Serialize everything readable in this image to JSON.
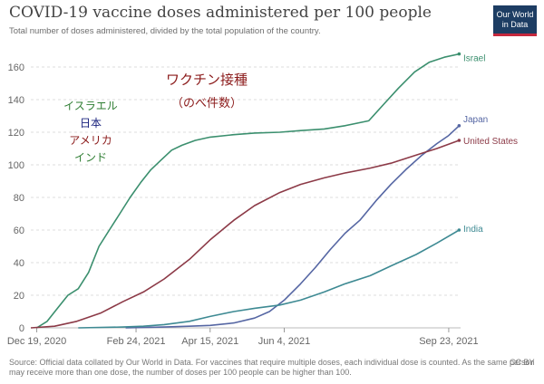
{
  "header": {
    "title": "COVID-19 vaccine doses administered per 100 people",
    "subtitle": "Total number of doses administered, divided by the total population of the country.",
    "logo_line1": "Our World",
    "logo_line2": "in Data"
  },
  "footer": {
    "source": "Source: Official data collated by Our World in Data. For vaccines that require multiple doses, each individual dose is counted. As the same person may receive more than one dose, the number of doses per 100 people can be higher than 100.",
    "license": "CC BY"
  },
  "annotations": {
    "title": "ワクチン接種",
    "subtitle": "（のべ件数）",
    "legend": [
      {
        "label": "イスラエル",
        "color": "#2e7d32"
      },
      {
        "label": "日本",
        "color": "#1a237e"
      },
      {
        "label": "アメリカ",
        "color": "#8b1a1a"
      },
      {
        "label": "インド",
        "color": "#2e7d32"
      }
    ],
    "title_color": "#8b1a1a"
  },
  "chart_data": {
    "type": "line",
    "title": "COVID-19 vaccine doses administered per 100 people",
    "ylim": [
      0,
      170
    ],
    "yticks": [
      0,
      20,
      40,
      60,
      80,
      100,
      120,
      140,
      160
    ],
    "xlim": [
      "2020-12-15",
      "2021-10-01"
    ],
    "xticks": [
      "2020-12-19",
      "2021-02-24",
      "2021-04-15",
      "2021-06-04",
      "2021-09-23"
    ],
    "xtick_labels": [
      "Dec 19, 2020",
      "Feb 24, 2021",
      "Apr 15, 2021",
      "Jun 4, 2021",
      "Sep 23, 2021"
    ],
    "grid": true,
    "series": [
      {
        "name": "Israel",
        "color": "#3b8f6e",
        "points": [
          [
            "2020-12-19",
            0
          ],
          [
            "2020-12-26",
            4
          ],
          [
            "2021-01-02",
            12
          ],
          [
            "2021-01-09",
            20
          ],
          [
            "2021-01-16",
            24
          ],
          [
            "2021-01-23",
            34
          ],
          [
            "2021-01-30",
            50
          ],
          [
            "2021-02-06",
            60
          ],
          [
            "2021-02-13",
            70
          ],
          [
            "2021-02-20",
            80
          ],
          [
            "2021-02-27",
            89
          ],
          [
            "2021-03-06",
            97
          ],
          [
            "2021-03-13",
            103
          ],
          [
            "2021-03-20",
            109
          ],
          [
            "2021-03-27",
            112
          ],
          [
            "2021-04-05",
            115
          ],
          [
            "2021-04-15",
            117
          ],
          [
            "2021-05-01",
            118.5
          ],
          [
            "2021-05-15",
            119.5
          ],
          [
            "2021-06-01",
            120
          ],
          [
            "2021-06-15",
            121
          ],
          [
            "2021-07-01",
            122
          ],
          [
            "2021-07-15",
            124
          ],
          [
            "2021-07-31",
            127
          ],
          [
            "2021-08-10",
            137
          ],
          [
            "2021-08-20",
            147
          ],
          [
            "2021-08-31",
            157
          ],
          [
            "2021-09-10",
            163
          ],
          [
            "2021-09-20",
            166
          ],
          [
            "2021-09-30",
            168
          ]
        ]
      },
      {
        "name": "Japan",
        "color": "#5566a3",
        "points": [
          [
            "2021-02-17",
            0
          ],
          [
            "2021-03-15",
            0.5
          ],
          [
            "2021-04-01",
            1
          ],
          [
            "2021-04-15",
            1.5
          ],
          [
            "2021-05-01",
            3
          ],
          [
            "2021-05-15",
            6
          ],
          [
            "2021-05-25",
            10
          ],
          [
            "2021-06-04",
            17
          ],
          [
            "2021-06-15",
            27
          ],
          [
            "2021-06-25",
            37
          ],
          [
            "2021-07-05",
            48
          ],
          [
            "2021-07-15",
            58
          ],
          [
            "2021-07-25",
            66
          ],
          [
            "2021-08-05",
            78
          ],
          [
            "2021-08-15",
            88
          ],
          [
            "2021-08-25",
            97
          ],
          [
            "2021-09-05",
            106
          ],
          [
            "2021-09-15",
            113
          ],
          [
            "2021-09-23",
            118
          ],
          [
            "2021-09-30",
            124
          ]
        ]
      },
      {
        "name": "United States",
        "color": "#8c3a47",
        "points": [
          [
            "2020-12-15",
            0
          ],
          [
            "2020-12-31",
            1
          ],
          [
            "2021-01-15",
            4
          ],
          [
            "2021-01-31",
            9
          ],
          [
            "2021-02-15",
            16
          ],
          [
            "2021-03-01",
            22
          ],
          [
            "2021-03-15",
            30
          ],
          [
            "2021-04-01",
            42
          ],
          [
            "2021-04-15",
            54
          ],
          [
            "2021-05-01",
            66
          ],
          [
            "2021-05-15",
            75
          ],
          [
            "2021-06-01",
            83
          ],
          [
            "2021-06-15",
            88
          ],
          [
            "2021-07-01",
            92
          ],
          [
            "2021-07-15",
            95
          ],
          [
            "2021-08-01",
            98
          ],
          [
            "2021-08-15",
            101
          ],
          [
            "2021-09-01",
            106
          ],
          [
            "2021-09-15",
            110
          ],
          [
            "2021-09-30",
            115
          ]
        ]
      },
      {
        "name": "India",
        "color": "#3e8a93",
        "points": [
          [
            "2021-01-16",
            0
          ],
          [
            "2021-02-15",
            0.5
          ],
          [
            "2021-03-01",
            1
          ],
          [
            "2021-03-15",
            2
          ],
          [
            "2021-04-01",
            4
          ],
          [
            "2021-04-15",
            7
          ],
          [
            "2021-05-01",
            10
          ],
          [
            "2021-05-15",
            12
          ],
          [
            "2021-06-01",
            14
          ],
          [
            "2021-06-15",
            17
          ],
          [
            "2021-07-01",
            22
          ],
          [
            "2021-07-15",
            27
          ],
          [
            "2021-08-01",
            32
          ],
          [
            "2021-08-15",
            38
          ],
          [
            "2021-09-01",
            45
          ],
          [
            "2021-09-15",
            52
          ],
          [
            "2021-09-30",
            60
          ]
        ]
      }
    ]
  }
}
